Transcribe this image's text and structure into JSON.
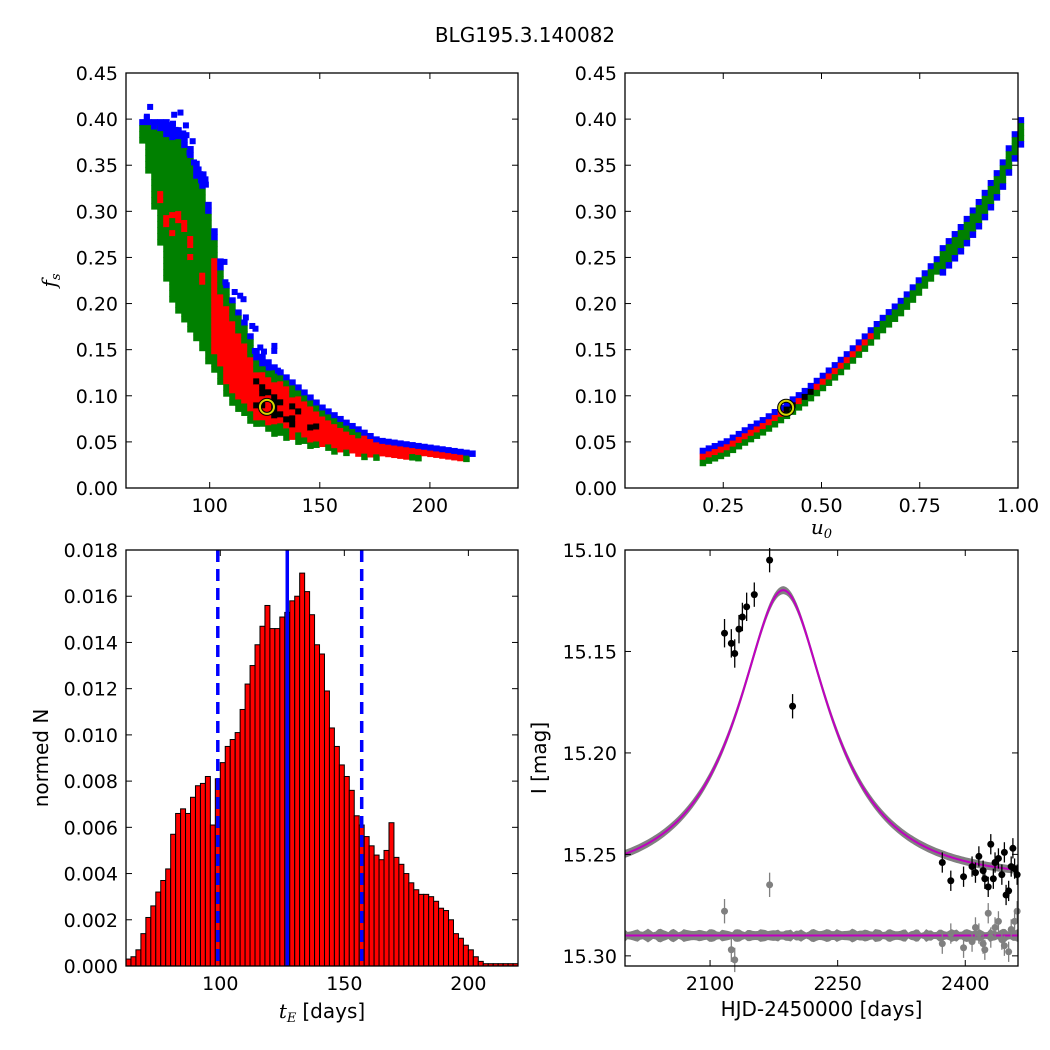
{
  "figure": {
    "title": "BLG195.3.140082"
  },
  "chart_data": [
    {
      "id": "ts-vs-fs",
      "type": "heatmap",
      "title": "",
      "xlabel": "",
      "ylabel": "f_s",
      "ylabel_main": "f",
      "ylabel_sub": "s",
      "xlim": [
        62,
        240
      ],
      "ylim": [
        0,
        0.45
      ],
      "xticks": [
        100,
        150,
        200
      ],
      "yticks": [
        0.0,
        0.05,
        0.1,
        0.15,
        0.2,
        0.25,
        0.3,
        0.35,
        0.4,
        0.45
      ],
      "colors": {
        "outer": "#0000ff",
        "middle": "#008000",
        "inner": "#ff0000",
        "core": "#000000"
      },
      "band": [
        {
          "x": 68,
          "ymin": 0.38,
          "ymax": 0.4
        },
        {
          "x": 72,
          "ymin": 0.33,
          "ymax": 0.4
        },
        {
          "x": 76,
          "ymin": 0.27,
          "ymax": 0.4
        },
        {
          "x": 80,
          "ymin": 0.21,
          "ymax": 0.4
        },
        {
          "x": 85,
          "ymin": 0.19,
          "ymax": 0.39
        },
        {
          "x": 90,
          "ymin": 0.17,
          "ymax": 0.37
        },
        {
          "x": 95,
          "ymin": 0.15,
          "ymax": 0.34
        },
        {
          "x": 100,
          "ymin": 0.13,
          "ymax": 0.29
        },
        {
          "x": 105,
          "ymin": 0.11,
          "ymax": 0.23
        },
        {
          "x": 110,
          "ymin": 0.09,
          "ymax": 0.2
        },
        {
          "x": 115,
          "ymin": 0.08,
          "ymax": 0.18
        },
        {
          "x": 120,
          "ymin": 0.07,
          "ymax": 0.15
        },
        {
          "x": 130,
          "ymin": 0.06,
          "ymax": 0.13
        },
        {
          "x": 140,
          "ymin": 0.05,
          "ymax": 0.11
        },
        {
          "x": 150,
          "ymin": 0.045,
          "ymax": 0.09
        },
        {
          "x": 160,
          "ymin": 0.04,
          "ymax": 0.075
        },
        {
          "x": 175,
          "ymin": 0.035,
          "ymax": 0.055
        },
        {
          "x": 190,
          "ymin": 0.035,
          "ymax": 0.05
        },
        {
          "x": 205,
          "ymin": 0.035,
          "ymax": 0.045
        },
        {
          "x": 220,
          "ymin": 0.035,
          "ymax": 0.04
        }
      ],
      "best_fit": {
        "x": 126,
        "y": 0.088
      }
    },
    {
      "id": "u0-vs-fs",
      "type": "heatmap",
      "title": "",
      "xlabel": "u_0",
      "xlabel_main": "u",
      "xlabel_sub": "0",
      "ylabel": "",
      "xlim": [
        0.0,
        1.0
      ],
      "ylim": [
        0,
        0.45
      ],
      "xticks": [
        0.25,
        0.5,
        0.75,
        1.0
      ],
      "xticklabels": [
        "0.25",
        "0.50",
        "0.75",
        "1.00"
      ],
      "yticks": [
        0.0,
        0.05,
        0.1,
        0.15,
        0.2,
        0.25,
        0.3,
        0.35,
        0.4,
        0.45
      ],
      "curve": [
        {
          "u": 0.19,
          "fs": 0.035
        },
        {
          "u": 0.25,
          "fs": 0.045
        },
        {
          "u": 0.3,
          "fs": 0.058
        },
        {
          "u": 0.35,
          "fs": 0.07
        },
        {
          "u": 0.4,
          "fs": 0.085
        },
        {
          "u": 0.45,
          "fs": 0.1
        },
        {
          "u": 0.5,
          "fs": 0.118
        },
        {
          "u": 0.55,
          "fs": 0.137
        },
        {
          "u": 0.6,
          "fs": 0.158
        },
        {
          "u": 0.65,
          "fs": 0.18
        },
        {
          "u": 0.7,
          "fs": 0.2
        },
        {
          "u": 0.75,
          "fs": 0.225
        },
        {
          "u": 0.8,
          "fs": 0.25
        },
        {
          "u": 0.85,
          "fs": 0.275
        },
        {
          "u": 0.9,
          "fs": 0.305
        },
        {
          "u": 0.95,
          "fs": 0.34
        },
        {
          "u": 1.0,
          "fs": 0.39
        }
      ],
      "best_fit": {
        "x": 0.41,
        "y": 0.087
      }
    },
    {
      "id": "tE-histogram",
      "type": "bar",
      "title": "",
      "xlabel": "[days]",
      "xlabel_main": "t",
      "xlabel_sub": "E",
      "ylabel": "normed N",
      "xlim": [
        62,
        220
      ],
      "ylim": [
        0,
        0.018
      ],
      "xticks": [
        100,
        150,
        200
      ],
      "yticks": [
        0.0,
        0.002,
        0.004,
        0.006,
        0.008,
        0.01,
        0.012,
        0.014,
        0.016,
        0.018
      ],
      "yticklabels": [
        "0.000",
        "0.002",
        "0.004",
        "0.006",
        "0.008",
        "0.010",
        "0.012",
        "0.014",
        "0.016",
        "0.018"
      ],
      "bin_start": 62,
      "bin_width": 2,
      "values": [
        0.0003,
        0.0004,
        0.0007,
        0.0014,
        0.0021,
        0.0026,
        0.0032,
        0.0037,
        0.0042,
        0.0057,
        0.0066,
        0.0068,
        0.0066,
        0.0073,
        0.0078,
        0.0079,
        0.0082,
        0.0061,
        0.0081,
        0.0088,
        0.0095,
        0.0098,
        0.0101,
        0.0111,
        0.0122,
        0.013,
        0.0139,
        0.0147,
        0.0156,
        0.0146,
        0.0146,
        0.0151,
        0.0153,
        0.0158,
        0.016,
        0.017,
        0.0162,
        0.0152,
        0.0139,
        0.0135,
        0.0119,
        0.0103,
        0.0095,
        0.0087,
        0.0082,
        0.0076,
        0.0065,
        0.0061,
        0.0056,
        0.0052,
        0.0048,
        0.0046,
        0.005,
        0.0062,
        0.0047,
        0.0044,
        0.004,
        0.0036,
        0.0033,
        0.0031,
        0.0031,
        0.003,
        0.0028,
        0.0025,
        0.0024,
        0.002,
        0.0014,
        0.0012,
        0.0009,
        0.0007,
        0.0004,
        0.0002,
        0.0001,
        0.0001,
        0.0001,
        0.0001,
        0.0001,
        0.0001,
        0.0001
      ],
      "bar_color": "#ff0000",
      "median_line": 127,
      "percentile_lines": [
        99,
        157
      ],
      "line_color": "#0000ff"
    },
    {
      "id": "lightcurve",
      "type": "scatter",
      "title": "",
      "xlabel": "HJD-2450000 [days]",
      "ylabel": "I [mag]",
      "xlim": [
        2000,
        2462
      ],
      "ylim": [
        15.305,
        15.1
      ],
      "y_inverted": true,
      "xticks": [
        2100,
        2250,
        2400
      ],
      "yticks": [
        15.1,
        15.15,
        15.2,
        15.25,
        15.3
      ],
      "yticklabels": [
        "15.10",
        "15.15",
        "15.20",
        "15.25",
        "15.30"
      ],
      "model": {
        "t0": 2186,
        "tE": 127,
        "u0": 0.41,
        "fs": 0.088,
        "I_base": 15.262
      },
      "model_color": "#c000c0",
      "band_color": "#808080",
      "residual_offset": 15.29,
      "data_points": [
        {
          "t": 2117,
          "I": 15.141,
          "err": 0.007
        },
        {
          "t": 2125,
          "I": 15.146,
          "err": 0.007
        },
        {
          "t": 2129,
          "I": 15.151,
          "err": 0.007
        },
        {
          "t": 2134,
          "I": 15.139,
          "err": 0.007
        },
        {
          "t": 2138,
          "I": 15.133,
          "err": 0.007
        },
        {
          "t": 2143,
          "I": 15.128,
          "err": 0.007
        },
        {
          "t": 2152,
          "I": 15.122,
          "err": 0.006
        },
        {
          "t": 2170,
          "I": 15.105,
          "err": 0.006
        },
        {
          "t": 2197,
          "I": 15.177,
          "err": 0.006
        },
        {
          "t": 2373,
          "I": 15.254,
          "err": 0.005
        },
        {
          "t": 2383,
          "I": 15.263,
          "err": 0.005
        },
        {
          "t": 2398,
          "I": 15.261,
          "err": 0.005
        },
        {
          "t": 2408,
          "I": 15.256,
          "err": 0.005
        },
        {
          "t": 2412,
          "I": 15.259,
          "err": 0.005
        },
        {
          "t": 2416,
          "I": 15.251,
          "err": 0.005
        },
        {
          "t": 2421,
          "I": 15.258,
          "err": 0.005
        },
        {
          "t": 2423,
          "I": 15.262,
          "err": 0.005
        },
        {
          "t": 2427,
          "I": 15.266,
          "err": 0.005
        },
        {
          "t": 2430,
          "I": 15.245,
          "err": 0.005
        },
        {
          "t": 2433,
          "I": 15.262,
          "err": 0.005
        },
        {
          "t": 2435,
          "I": 15.254,
          "err": 0.005
        },
        {
          "t": 2439,
          "I": 15.252,
          "err": 0.005
        },
        {
          "t": 2443,
          "I": 15.26,
          "err": 0.005
        },
        {
          "t": 2446,
          "I": 15.249,
          "err": 0.005
        },
        {
          "t": 2448,
          "I": 15.27,
          "err": 0.005
        },
        {
          "t": 2451,
          "I": 15.268,
          "err": 0.005
        },
        {
          "t": 2454,
          "I": 15.256,
          "err": 0.005
        },
        {
          "t": 2456,
          "I": 15.247,
          "err": 0.005
        },
        {
          "t": 2458,
          "I": 15.257,
          "err": 0.005
        },
        {
          "t": 2461,
          "I": 15.26,
          "err": 0.005
        }
      ],
      "residual_points": [
        {
          "t": 2117,
          "I": 15.278,
          "err": 0.006
        },
        {
          "t": 2125,
          "I": 15.297,
          "err": 0.006
        },
        {
          "t": 2129,
          "I": 15.302,
          "err": 0.006
        },
        {
          "t": 2170,
          "I": 15.265,
          "err": 0.006
        },
        {
          "t": 2373,
          "I": 15.294,
          "err": 0.005
        },
        {
          "t": 2383,
          "I": 15.289,
          "err": 0.005
        },
        {
          "t": 2398,
          "I": 15.296,
          "err": 0.005
        },
        {
          "t": 2408,
          "I": 15.293,
          "err": 0.005
        },
        {
          "t": 2412,
          "I": 15.286,
          "err": 0.005
        },
        {
          "t": 2416,
          "I": 15.289,
          "err": 0.005
        },
        {
          "t": 2421,
          "I": 15.294,
          "err": 0.005
        },
        {
          "t": 2423,
          "I": 15.297,
          "err": 0.005
        },
        {
          "t": 2427,
          "I": 15.279,
          "err": 0.005
        },
        {
          "t": 2430,
          "I": 15.291,
          "err": 0.005
        },
        {
          "t": 2435,
          "I": 15.286,
          "err": 0.005
        },
        {
          "t": 2439,
          "I": 15.283,
          "err": 0.005
        },
        {
          "t": 2443,
          "I": 15.292,
          "err": 0.005
        },
        {
          "t": 2446,
          "I": 15.295,
          "err": 0.005
        },
        {
          "t": 2451,
          "I": 15.298,
          "err": 0.005
        },
        {
          "t": 2454,
          "I": 15.287,
          "err": 0.005
        },
        {
          "t": 2458,
          "I": 15.283,
          "err": 0.005
        },
        {
          "t": 2461,
          "I": 15.278,
          "err": 0.005
        }
      ]
    }
  ]
}
